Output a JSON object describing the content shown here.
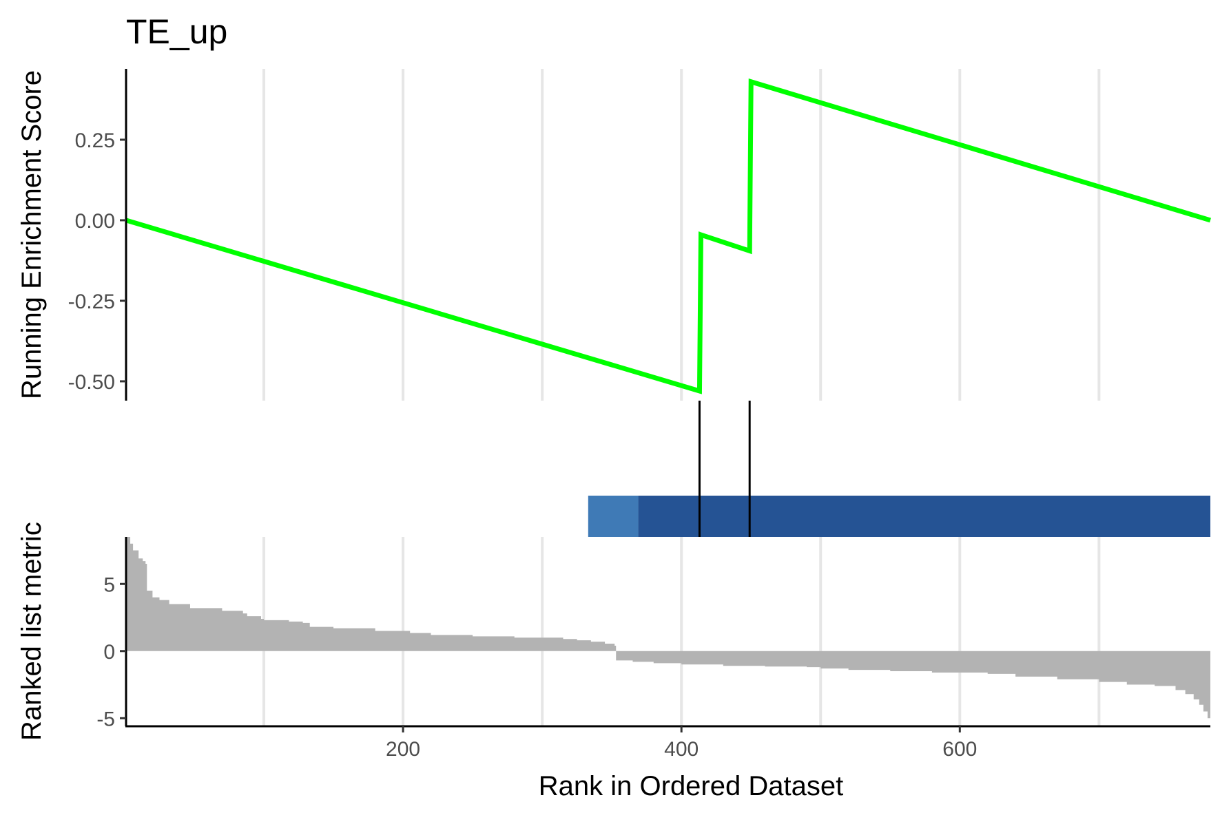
{
  "chart_data": {
    "type": "line",
    "title": "TE_up",
    "xlabel": "Rank in Ordered Dataset",
    "xlim": [
      1,
      780
    ],
    "x_ticks": [
      200,
      400,
      600
    ],
    "x_tick_labels": [
      "200",
      "400",
      "600"
    ],
    "x_grid": [
      100,
      200,
      300,
      400,
      500,
      600,
      700
    ],
    "grid": "vertical minor and major lines, light grey",
    "panels": {
      "running_score": {
        "ylabel": "Running Enrichment Score",
        "ylim": [
          -0.56,
          0.47
        ],
        "y_ticks": [
          0.25,
          0.0,
          -0.25,
          -0.5
        ],
        "y_tick_labels": [
          "0.25",
          "0.00",
          "-0.25",
          "-0.50"
        ],
        "color": "#00FF00",
        "series": [
          {
            "x": [
              1,
              413,
              414,
              449,
              450,
              780
            ],
            "y": [
              0.0,
              -0.53,
              -0.045,
              -0.095,
              0.43,
              0.0
            ]
          }
        ]
      },
      "hits": {
        "positions": [
          413,
          449
        ],
        "color": "#000000"
      },
      "rank_gradient": {
        "segments": [
          {
            "start": 333,
            "end": 369,
            "color": "#3F7AB6"
          },
          {
            "start": 369,
            "end": 780,
            "color": "#255394"
          }
        ]
      },
      "ranked_metric": {
        "ylabel": "Ranked list metric",
        "ylim": [
          -5.6,
          8.5
        ],
        "y_ticks": [
          5,
          0,
          -5
        ],
        "y_tick_labels": [
          "5",
          "0",
          "-5"
        ],
        "color": "#B3B3B3",
        "steps": [
          {
            "x": 1,
            "y": 8.5
          },
          {
            "x": 4,
            "y": 8.0
          },
          {
            "x": 6,
            "y": 7.5
          },
          {
            "x": 10,
            "y": 6.9
          },
          {
            "x": 13,
            "y": 6.7
          },
          {
            "x": 15,
            "y": 6.5
          },
          {
            "x": 16,
            "y": 4.5
          },
          {
            "x": 20,
            "y": 4.0
          },
          {
            "x": 25,
            "y": 3.8
          },
          {
            "x": 32,
            "y": 3.5
          },
          {
            "x": 47,
            "y": 3.2
          },
          {
            "x": 70,
            "y": 3.0
          },
          {
            "x": 85,
            "y": 2.8
          },
          {
            "x": 88,
            "y": 2.6
          },
          {
            "x": 98,
            "y": 2.4
          },
          {
            "x": 100,
            "y": 2.3
          },
          {
            "x": 118,
            "y": 2.2
          },
          {
            "x": 128,
            "y": 2.1
          },
          {
            "x": 133,
            "y": 1.8
          },
          {
            "x": 150,
            "y": 1.7
          },
          {
            "x": 180,
            "y": 1.5
          },
          {
            "x": 205,
            "y": 1.35
          },
          {
            "x": 220,
            "y": 1.2
          },
          {
            "x": 250,
            "y": 1.1
          },
          {
            "x": 280,
            "y": 1.0
          },
          {
            "x": 315,
            "y": 0.9
          },
          {
            "x": 325,
            "y": 0.8
          },
          {
            "x": 335,
            "y": 0.7
          },
          {
            "x": 345,
            "y": 0.55
          },
          {
            "x": 352,
            "y": 0.4
          },
          {
            "x": 353,
            "y": -0.7
          },
          {
            "x": 365,
            "y": -0.8
          },
          {
            "x": 380,
            "y": -0.9
          },
          {
            "x": 400,
            "y": -1.0
          },
          {
            "x": 430,
            "y": -1.1
          },
          {
            "x": 460,
            "y": -1.15
          },
          {
            "x": 490,
            "y": -1.2
          },
          {
            "x": 500,
            "y": -1.3
          },
          {
            "x": 520,
            "y": -1.4
          },
          {
            "x": 550,
            "y": -1.5
          },
          {
            "x": 580,
            "y": -1.6
          },
          {
            "x": 620,
            "y": -1.7
          },
          {
            "x": 640,
            "y": -1.9
          },
          {
            "x": 670,
            "y": -2.1
          },
          {
            "x": 700,
            "y": -2.3
          },
          {
            "x": 720,
            "y": -2.5
          },
          {
            "x": 740,
            "y": -2.6
          },
          {
            "x": 755,
            "y": -2.9
          },
          {
            "x": 762,
            "y": -3.2
          },
          {
            "x": 768,
            "y": -3.6
          },
          {
            "x": 772,
            "y": -4.0
          },
          {
            "x": 775,
            "y": -4.5
          },
          {
            "x": 778,
            "y": -5.0
          },
          {
            "x": 780,
            "y": -5.0
          }
        ]
      }
    }
  }
}
